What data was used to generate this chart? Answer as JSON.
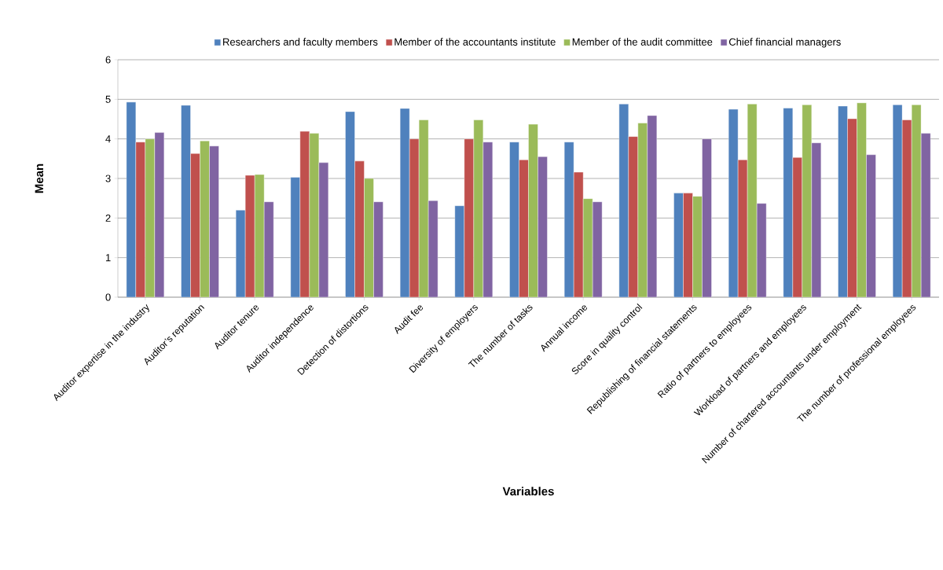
{
  "chart_data": {
    "type": "bar",
    "xlabel": "Variables",
    "ylabel": "Mean",
    "categories": [
      "Auditor expertise in the industry",
      "Auditor’s reputation",
      "Auditor tenure",
      "Auditor independence",
      "Detection of distortions",
      "Audit fee",
      "Diversity of employers",
      "The number of tasks",
      "Annual income",
      "Score in quality control",
      "Republishing of financial statements",
      "Ratio of partners to employees",
      "Workload of partners and employees",
      "Number of chartered accountants under employment",
      "The number of professional employees"
    ],
    "series": [
      {
        "name": "Researchers  and faculty members",
        "color": "#4f81bd",
        "values": [
          4.93,
          4.85,
          2.2,
          3.03,
          4.69,
          4.77,
          2.31,
          3.92,
          3.92,
          4.88,
          2.63,
          4.75,
          4.78,
          4.83,
          4.86
        ]
      },
      {
        "name": "Member of the accountants institute",
        "color": "#c0504d",
        "values": [
          3.92,
          3.63,
          3.08,
          4.19,
          3.44,
          4.0,
          4.0,
          3.47,
          3.16,
          4.06,
          2.63,
          3.47,
          3.53,
          4.51,
          4.48
        ]
      },
      {
        "name": "Member of the audit committee",
        "color": "#9bbb59",
        "values": [
          4.0,
          3.95,
          3.1,
          4.14,
          3.0,
          4.48,
          4.48,
          4.37,
          2.49,
          4.4,
          2.55,
          4.88,
          4.86,
          4.91,
          4.86
        ]
      },
      {
        "name": "Chief  financial managers",
        "color": "#8064a2",
        "values": [
          4.16,
          3.82,
          2.41,
          3.4,
          2.41,
          2.44,
          3.92,
          3.55,
          2.41,
          4.59,
          4.0,
          2.37,
          3.9,
          3.6,
          4.14
        ]
      }
    ],
    "ylim": [
      0,
      6
    ],
    "yticks": [
      0,
      1,
      2,
      3,
      4,
      5,
      6
    ],
    "grid": "y",
    "legend": "top"
  }
}
